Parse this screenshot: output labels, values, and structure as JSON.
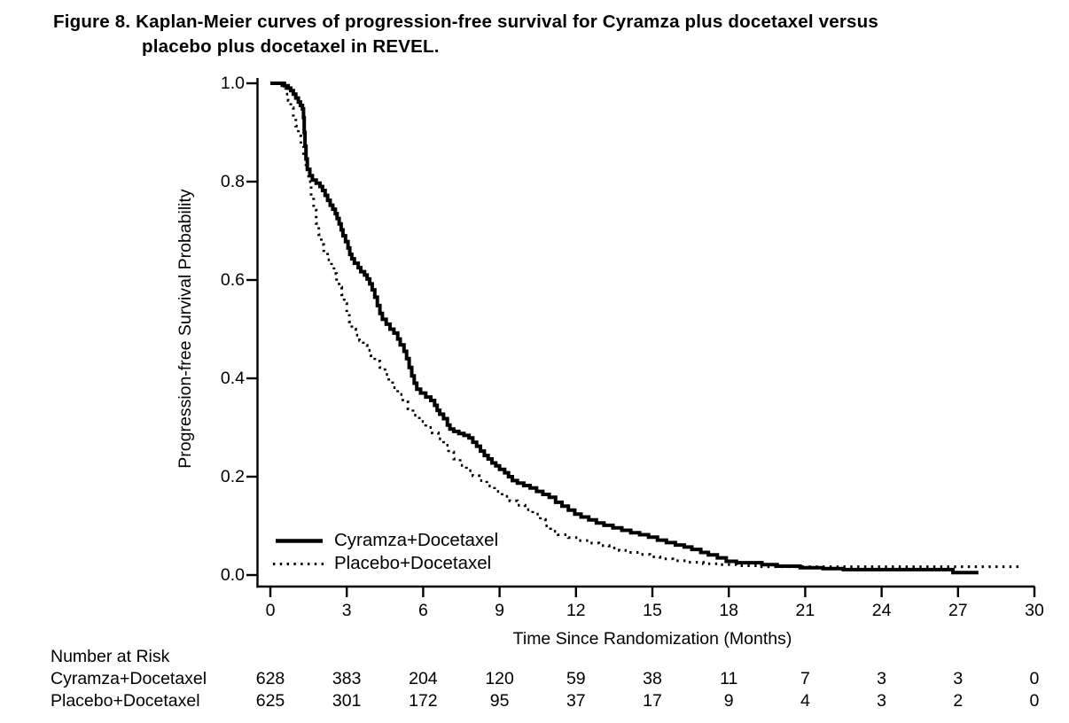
{
  "figure": {
    "title_line1": "Figure 8. Kaplan-Meier curves of progression-free survival for Cyramza plus docetaxel versus",
    "title_line2": "placebo plus docetaxel in REVEL."
  },
  "colors": {
    "foreground": "#000000",
    "background": "#ffffff"
  },
  "chart_data": {
    "type": "line",
    "subtype": "kaplan-meier-step",
    "title": "Figure 8. Kaplan-Meier curves of progression-free survival for Cyramza plus docetaxel versus placebo plus docetaxel in REVEL.",
    "xlabel": "Time Since Randomization (Months)",
    "ylabel": "Progression-free Survival Probability",
    "xlim": [
      0,
      30
    ],
    "ylim": [
      0.0,
      1.0
    ],
    "x_ticks": [
      0,
      3,
      6,
      9,
      12,
      15,
      18,
      21,
      24,
      27,
      30
    ],
    "y_ticks": [
      0.0,
      0.2,
      0.4,
      0.6,
      0.8,
      1.0
    ],
    "y_tick_labels": [
      "0.0",
      "0.2",
      "0.4",
      "0.6",
      "0.8",
      "1.0"
    ],
    "grid": false,
    "legend_position": "inside-lower-left",
    "series": [
      {
        "name": "Cyramza+Docetaxel",
        "style": "solid",
        "color": "#000000",
        "points": [
          [
            0,
            1.0
          ],
          [
            0.45,
            1.0
          ],
          [
            0.55,
            0.995
          ],
          [
            0.7,
            0.99
          ],
          [
            0.8,
            0.985
          ],
          [
            0.9,
            0.978
          ],
          [
            1.0,
            0.97
          ],
          [
            1.1,
            0.962
          ],
          [
            1.18,
            0.955
          ],
          [
            1.26,
            0.948
          ],
          [
            1.3,
            0.93
          ],
          [
            1.33,
            0.9
          ],
          [
            1.36,
            0.872
          ],
          [
            1.4,
            0.846
          ],
          [
            1.45,
            0.825
          ],
          [
            1.55,
            0.812
          ],
          [
            1.65,
            0.803
          ],
          [
            1.8,
            0.797
          ],
          [
            1.95,
            0.79
          ],
          [
            2.05,
            0.782
          ],
          [
            2.15,
            0.772
          ],
          [
            2.25,
            0.762
          ],
          [
            2.35,
            0.752
          ],
          [
            2.45,
            0.744
          ],
          [
            2.55,
            0.735
          ],
          [
            2.62,
            0.725
          ],
          [
            2.7,
            0.714
          ],
          [
            2.78,
            0.702
          ],
          [
            2.85,
            0.69
          ],
          [
            2.95,
            0.678
          ],
          [
            3.05,
            0.665
          ],
          [
            3.12,
            0.652
          ],
          [
            3.2,
            0.643
          ],
          [
            3.3,
            0.634
          ],
          [
            3.45,
            0.625
          ],
          [
            3.55,
            0.617
          ],
          [
            3.7,
            0.61
          ],
          [
            3.8,
            0.602
          ],
          [
            3.9,
            0.592
          ],
          [
            4.0,
            0.58
          ],
          [
            4.1,
            0.565
          ],
          [
            4.2,
            0.548
          ],
          [
            4.3,
            0.532
          ],
          [
            4.4,
            0.52
          ],
          [
            4.55,
            0.51
          ],
          [
            4.7,
            0.5
          ],
          [
            4.85,
            0.492
          ],
          [
            5.0,
            0.48
          ],
          [
            5.1,
            0.468
          ],
          [
            5.25,
            0.455
          ],
          [
            5.35,
            0.44
          ],
          [
            5.45,
            0.422
          ],
          [
            5.55,
            0.405
          ],
          [
            5.65,
            0.39
          ],
          [
            5.75,
            0.378
          ],
          [
            5.9,
            0.37
          ],
          [
            6.1,
            0.362
          ],
          [
            6.3,
            0.355
          ],
          [
            6.45,
            0.345
          ],
          [
            6.55,
            0.335
          ],
          [
            6.65,
            0.327
          ],
          [
            6.8,
            0.318
          ],
          [
            6.95,
            0.305
          ],
          [
            7.05,
            0.297
          ],
          [
            7.2,
            0.292
          ],
          [
            7.4,
            0.288
          ],
          [
            7.6,
            0.284
          ],
          [
            7.8,
            0.279
          ],
          [
            7.95,
            0.27
          ],
          [
            8.1,
            0.262
          ],
          [
            8.25,
            0.252
          ],
          [
            8.4,
            0.243
          ],
          [
            8.55,
            0.236
          ],
          [
            8.7,
            0.228
          ],
          [
            8.85,
            0.222
          ],
          [
            9.0,
            0.215
          ],
          [
            9.2,
            0.208
          ],
          [
            9.35,
            0.2
          ],
          [
            9.5,
            0.192
          ],
          [
            9.7,
            0.187
          ],
          [
            9.95,
            0.182
          ],
          [
            10.2,
            0.177
          ],
          [
            10.45,
            0.17
          ],
          [
            10.7,
            0.164
          ],
          [
            10.95,
            0.158
          ],
          [
            11.2,
            0.148
          ],
          [
            11.45,
            0.14
          ],
          [
            11.7,
            0.132
          ],
          [
            11.95,
            0.124
          ],
          [
            12.2,
            0.118
          ],
          [
            12.5,
            0.112
          ],
          [
            12.8,
            0.106
          ],
          [
            13.1,
            0.101
          ],
          [
            13.45,
            0.096
          ],
          [
            13.8,
            0.091
          ],
          [
            14.15,
            0.086
          ],
          [
            14.5,
            0.082
          ],
          [
            14.85,
            0.077
          ],
          [
            15.2,
            0.071
          ],
          [
            15.55,
            0.066
          ],
          [
            15.9,
            0.061
          ],
          [
            16.25,
            0.057
          ],
          [
            16.55,
            0.052
          ],
          [
            16.9,
            0.046
          ],
          [
            17.2,
            0.041
          ],
          [
            17.55,
            0.035
          ],
          [
            17.9,
            0.028
          ],
          [
            18.3,
            0.025
          ],
          [
            19.3,
            0.021
          ],
          [
            19.9,
            0.018
          ],
          [
            20.8,
            0.015
          ],
          [
            21.7,
            0.013
          ],
          [
            22.5,
            0.011
          ],
          [
            26.8,
            0.005
          ],
          [
            27.8,
            0.005
          ]
        ]
      },
      {
        "name": "Placebo+Docetaxel",
        "style": "dotted",
        "color": "#000000",
        "points": [
          [
            0.4,
            0.995
          ],
          [
            0.5,
            0.99
          ],
          [
            0.6,
            0.978
          ],
          [
            0.7,
            0.965
          ],
          [
            0.8,
            0.95
          ],
          [
            0.9,
            0.932
          ],
          [
            1.0,
            0.913
          ],
          [
            1.1,
            0.893
          ],
          [
            1.2,
            0.872
          ],
          [
            1.3,
            0.85
          ],
          [
            1.4,
            0.828
          ],
          [
            1.5,
            0.8
          ],
          [
            1.6,
            0.77
          ],
          [
            1.7,
            0.742
          ],
          [
            1.8,
            0.715
          ],
          [
            1.9,
            0.692
          ],
          [
            2.0,
            0.672
          ],
          [
            2.1,
            0.656
          ],
          [
            2.25,
            0.641
          ],
          [
            2.4,
            0.627
          ],
          [
            2.5,
            0.613
          ],
          [
            2.6,
            0.598
          ],
          [
            2.7,
            0.585
          ],
          [
            2.8,
            0.57
          ],
          [
            2.9,
            0.552
          ],
          [
            3.0,
            0.533
          ],
          [
            3.1,
            0.515
          ],
          [
            3.2,
            0.5
          ],
          [
            3.35,
            0.488
          ],
          [
            3.5,
            0.477
          ],
          [
            3.65,
            0.467
          ],
          [
            3.8,
            0.457
          ],
          [
            3.95,
            0.446
          ],
          [
            4.1,
            0.435
          ],
          [
            4.3,
            0.422
          ],
          [
            4.5,
            0.408
          ],
          [
            4.65,
            0.394
          ],
          [
            4.8,
            0.381
          ],
          [
            5.0,
            0.367
          ],
          [
            5.2,
            0.352
          ],
          [
            5.4,
            0.338
          ],
          [
            5.6,
            0.325
          ],
          [
            5.85,
            0.312
          ],
          [
            6.1,
            0.3
          ],
          [
            6.35,
            0.289
          ],
          [
            6.6,
            0.277
          ],
          [
            6.8,
            0.264
          ],
          [
            7.0,
            0.25
          ],
          [
            7.2,
            0.236
          ],
          [
            7.45,
            0.223
          ],
          [
            7.7,
            0.212
          ],
          [
            7.95,
            0.202
          ],
          [
            8.2,
            0.192
          ],
          [
            8.5,
            0.181
          ],
          [
            8.8,
            0.17
          ],
          [
            9.1,
            0.16
          ],
          [
            9.4,
            0.151
          ],
          [
            9.7,
            0.142
          ],
          [
            10.0,
            0.133
          ],
          [
            10.3,
            0.124
          ],
          [
            10.6,
            0.113
          ],
          [
            10.8,
            0.1
          ],
          [
            11.0,
            0.089
          ],
          [
            11.3,
            0.082
          ],
          [
            11.7,
            0.076
          ],
          [
            12.1,
            0.07
          ],
          [
            12.5,
            0.065
          ],
          [
            12.9,
            0.06
          ],
          [
            13.3,
            0.055
          ],
          [
            13.7,
            0.05
          ],
          [
            14.1,
            0.046
          ],
          [
            14.5,
            0.042
          ],
          [
            14.9,
            0.037
          ],
          [
            15.3,
            0.033
          ],
          [
            15.8,
            0.029
          ],
          [
            16.4,
            0.026
          ],
          [
            17.0,
            0.023
          ],
          [
            17.6,
            0.021
          ],
          [
            18.3,
            0.019
          ],
          [
            19.2,
            0.017
          ],
          [
            29.4,
            0.017
          ]
        ]
      }
    ]
  },
  "risk_table": {
    "heading": "Number at Risk",
    "time_points": [
      0,
      3,
      6,
      9,
      12,
      15,
      18,
      21,
      24,
      27,
      30
    ],
    "rows": [
      {
        "label": "Cyramza+Docetaxel",
        "counts": [
          628,
          383,
          204,
          120,
          59,
          38,
          11,
          7,
          3,
          3,
          0
        ]
      },
      {
        "label": "Placebo+Docetaxel",
        "counts": [
          625,
          301,
          172,
          95,
          37,
          17,
          9,
          4,
          3,
          2,
          0
        ]
      }
    ]
  }
}
